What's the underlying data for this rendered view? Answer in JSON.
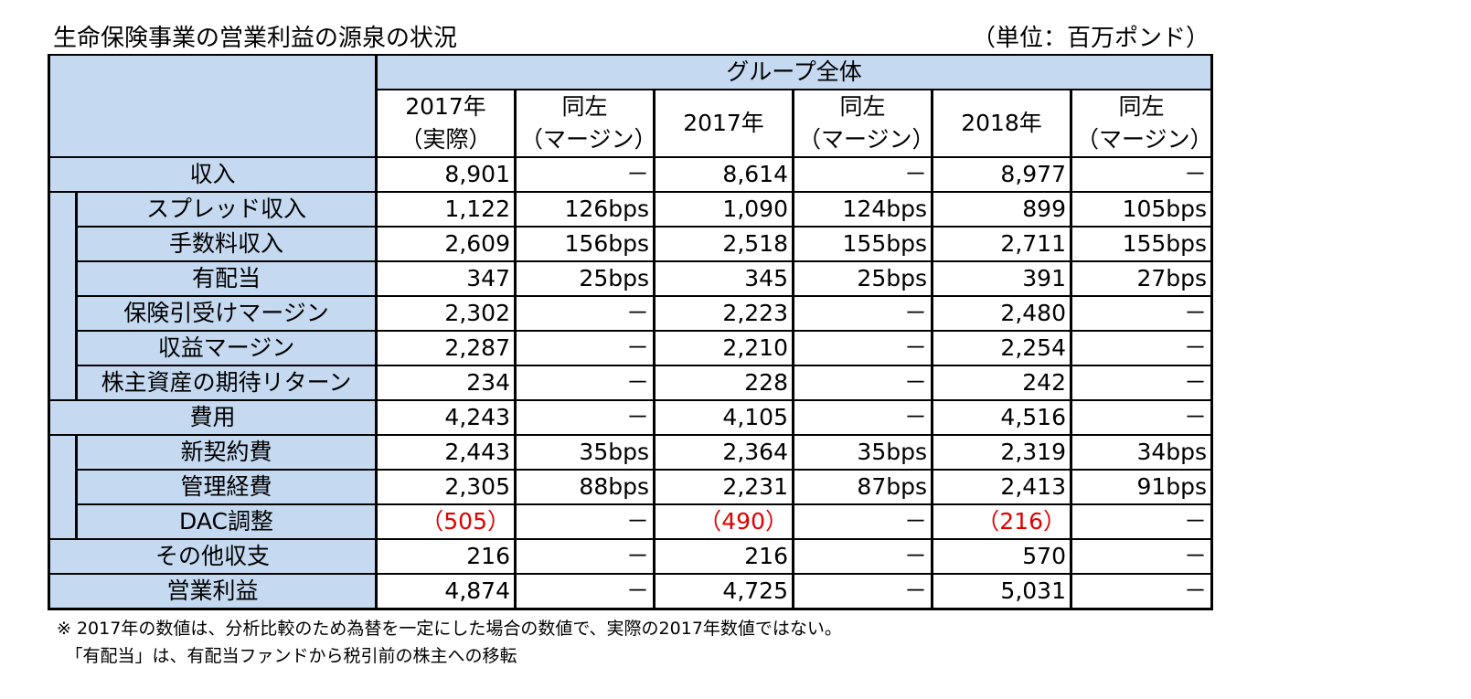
{
  "title": "生命保険事業の営業利益の源泉の状況",
  "unit": "（単位：百万ポンド）",
  "group_header": "グループ全体",
  "columns": [
    {
      "line1": "2017年",
      "line2": "（実際）"
    },
    {
      "line1": "同左",
      "line2": "（マージン）"
    },
    {
      "line1": "2017年",
      "line2": ""
    },
    {
      "line1": "同左",
      "line2": "（マージン）"
    },
    {
      "line1": "2018年",
      "line2": ""
    },
    {
      "line1": "同左",
      "line2": "（マージン）"
    }
  ],
  "rows": [
    {
      "label": "収入",
      "level": 0,
      "values": [
        "8,901",
        "－",
        "8,614",
        "－",
        "8,977",
        "－"
      ]
    },
    {
      "label": "スプレッド収入",
      "level": 1,
      "values": [
        "1,122",
        "126bps",
        "1,090",
        "124bps",
        "899",
        "105bps"
      ]
    },
    {
      "label": "手数料収入",
      "level": 1,
      "values": [
        "2,609",
        "156bps",
        "2,518",
        "155bps",
        "2,711",
        "155bps"
      ]
    },
    {
      "label": "有配当",
      "level": 1,
      "values": [
        "347",
        "25bps",
        "345",
        "25bps",
        "391",
        "27bps"
      ]
    },
    {
      "label": "保険引受けマージン",
      "level": 1,
      "values": [
        "2,302",
        "－",
        "2,223",
        "－",
        "2,480",
        "－"
      ]
    },
    {
      "label": "収益マージン",
      "level": 1,
      "values": [
        "2,287",
        "－",
        "2,210",
        "－",
        "2,254",
        "－"
      ]
    },
    {
      "label": "株主資産の期待リターン",
      "level": 1,
      "values": [
        "234",
        "－",
        "228",
        "－",
        "242",
        "－"
      ]
    },
    {
      "label": "費用",
      "level": 0,
      "values": [
        "4,243",
        "－",
        "4,105",
        "－",
        "4,516",
        "－"
      ]
    },
    {
      "label": "新契約費",
      "level": 1,
      "values": [
        "2,443",
        "35bps",
        "2,364",
        "35bps",
        "2,319",
        "34bps"
      ]
    },
    {
      "label": "管理経費",
      "level": 1,
      "values": [
        "2,305",
        "88bps",
        "2,231",
        "87bps",
        "2,413",
        "91bps"
      ]
    },
    {
      "label": "DAC調整",
      "level": 1,
      "values": [
        "（505）",
        "－",
        "（490）",
        "－",
        "（216）",
        "－"
      ],
      "negative": true
    },
    {
      "label": "その他収支",
      "level": 0,
      "values": [
        "216",
        "－",
        "216",
        "－",
        "570",
        "－"
      ]
    },
    {
      "label": "営業利益",
      "level": 0,
      "values": [
        "4,874",
        "－",
        "4,725",
        "－",
        "5,031",
        "－"
      ]
    }
  ],
  "notes": [
    "※ 2017年の数値は、分析比較のため為替を一定にした場合の数値で、実際の2017年数値ではない。",
    "　「有配当」は、有配当ファンドから税引前の株主への移転"
  ],
  "colors": {
    "header_fill": "#c5d9f1",
    "negative_text": "#e00000",
    "border": "#000000"
  }
}
